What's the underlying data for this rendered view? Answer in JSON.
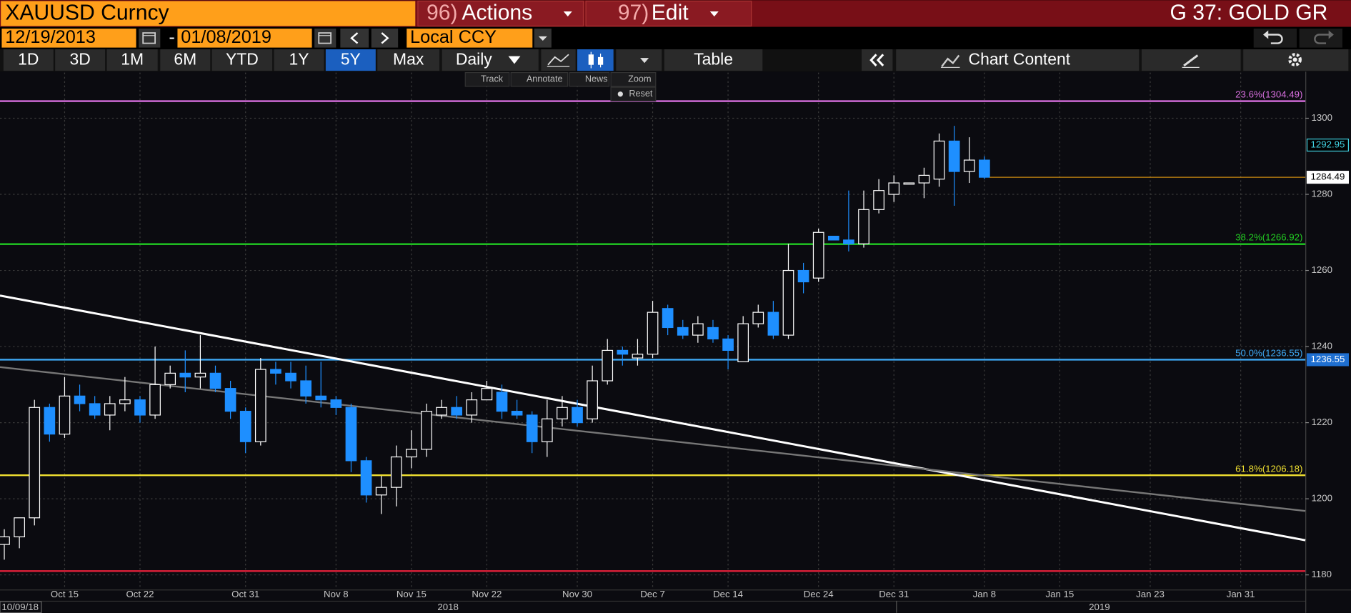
{
  "header": {
    "security": "XAUUSD Curncy",
    "actions": {
      "num": "96)",
      "label": "Actions"
    },
    "edit": {
      "num": "97)",
      "label": "Edit"
    },
    "function": "G 37: GOLD GR"
  },
  "date_range": {
    "start": "12/19/2013",
    "separator": "-",
    "end": "01/08/2019",
    "currency": "Local CCY"
  },
  "periods": [
    {
      "label": "1D"
    },
    {
      "label": "3D"
    },
    {
      "label": "1M"
    },
    {
      "label": "6M"
    },
    {
      "label": "YTD"
    },
    {
      "label": "1Y"
    },
    {
      "label": "5Y",
      "selected": true
    },
    {
      "label": "Max"
    }
  ],
  "frequency": "Daily",
  "table": "Table",
  "chart_content": "Chart Content",
  "chart_tools": [
    "Track",
    "Annotate",
    "News",
    "Zoom"
  ],
  "reset": "Reset",
  "chart_data": {
    "type": "candlestick",
    "categories": [
      null,
      null,
      null,
      null,
      "Oct 15",
      null,
      null,
      null,
      null,
      "Oct 22",
      null,
      null,
      null,
      null,
      null,
      null,
      "Oct 31",
      null,
      null,
      null,
      null,
      null,
      "Nov 8",
      null,
      null,
      null,
      null,
      "Nov 15",
      null,
      null,
      null,
      null,
      "Nov 22",
      null,
      null,
      null,
      null,
      null,
      "Nov 30",
      null,
      null,
      null,
      null,
      "Dec 7",
      null,
      null,
      null,
      null,
      "Dec 14",
      null,
      null,
      null,
      null,
      null,
      "Dec 24",
      null,
      null,
      null,
      null,
      "Dec 31",
      null,
      null,
      null,
      null,
      null,
      "Jan 8",
      null,
      null,
      null,
      null,
      "Jan 15",
      null,
      null,
      null,
      null,
      null,
      "Jan 23",
      null,
      null,
      null,
      null,
      null,
      "Jan 31",
      null,
      null,
      null,
      null
    ],
    "open": [
      1188,
      1190,
      1195,
      1224,
      1217,
      1227,
      1225,
      1222,
      1225,
      1226,
      1222,
      1230,
      1233,
      1232,
      1233,
      1229,
      1223,
      1215,
      1234,
      1233,
      1231,
      1227,
      1226,
      1224,
      1210,
      1201,
      1203,
      1211,
      1213,
      1222,
      1224,
      1222,
      1226,
      1228,
      1223,
      1222,
      1215,
      1221,
      1224,
      1221,
      1231,
      1239,
      1237,
      1238,
      1250,
      1245,
      1243,
      1245,
      1242,
      1236,
      1246,
      1249,
      1243,
      1260,
      1258,
      1269,
      1268,
      1267,
      1276,
      1280,
      1283,
      1283,
      1284,
      1294,
      1286,
      1289,
      null,
      null,
      null,
      null,
      null,
      null,
      null,
      null,
      null,
      null,
      null,
      null,
      null,
      null,
      null,
      null,
      null,
      null,
      null,
      null,
      null
    ],
    "high": [
      1192,
      1195,
      1226,
      1225,
      1232,
      1230,
      1227,
      1227,
      1232,
      1227,
      1240,
      1235,
      1239,
      1243,
      1235,
      1231,
      1224,
      1237,
      1236,
      1236,
      1235,
      1236,
      1227,
      1225,
      1211,
      1206,
      1214,
      1218,
      1225,
      1226,
      1227,
      1228,
      1231,
      1230,
      1226,
      1223,
      1226,
      1227,
      1226,
      1235,
      1242,
      1240,
      1242,
      1252,
      1251,
      1247,
      1248,
      1247,
      1243,
      1248,
      1251,
      1252,
      1267,
      1262,
      1271,
      1269,
      1281,
      1281,
      1284,
      1285,
      1283,
      1287,
      1296,
      1298,
      1295,
      1290,
      null,
      null,
      null,
      null,
      null,
      null,
      null,
      null,
      null,
      null,
      null,
      null,
      null,
      null,
      null,
      null,
      null,
      null,
      null,
      null,
      null
    ],
    "low": [
      1184,
      1187,
      1193,
      1215,
      1216,
      1223,
      1221,
      1218,
      1223,
      1220,
      1221,
      1229,
      1228,
      1229,
      1228,
      1221,
      1212,
      1214,
      1230,
      1229,
      1225,
      1224,
      1222,
      1207,
      1199,
      1196,
      1198,
      1208,
      1211,
      1221,
      1221,
      1220,
      1226,
      1221,
      1221,
      1212,
      1211,
      1219,
      1219,
      1220,
      1230,
      1235,
      1235,
      1237,
      1243,
      1242,
      1241,
      1241,
      1234,
      1236,
      1245,
      1242,
      1242,
      1254,
      1257,
      1268,
      1265,
      1266,
      1275,
      1278,
      1283,
      1279,
      1282,
      1277,
      1283,
      1284,
      null,
      null,
      null,
      null,
      null,
      null,
      null,
      null,
      null,
      null,
      null,
      null,
      null,
      null,
      null,
      null,
      null,
      null,
      null,
      null,
      null
    ],
    "close": [
      1190,
      1195,
      1224,
      1217,
      1227,
      1225,
      1222,
      1225,
      1226,
      1222,
      1230,
      1233,
      1232,
      1233,
      1229,
      1223,
      1215,
      1234,
      1233,
      1231,
      1227,
      1226,
      1224,
      1210,
      1201,
      1203,
      1211,
      1213,
      1223,
      1224,
      1222,
      1226,
      1229,
      1223,
      1222,
      1215,
      1221,
      1224,
      1220,
      1231,
      1239,
      1238,
      1238,
      1249,
      1245,
      1243,
      1246,
      1242,
      1239,
      1246,
      1249,
      1243,
      1260,
      1257,
      1270,
      1268,
      1267,
      1276,
      1281,
      1283,
      1283,
      1285,
      1294,
      1286,
      1289,
      1284.49,
      null,
      null,
      null,
      null,
      null,
      null,
      null,
      null,
      null,
      null,
      null,
      null,
      null,
      null,
      null,
      null,
      null,
      null,
      null,
      null,
      null
    ],
    "up_color": "#ffffff",
    "down_color": "#1e8fff",
    "ylim": [
      1176.15,
      1312
    ],
    "yticks": [
      1180,
      1200,
      1220,
      1240,
      1260,
      1280,
      1300
    ],
    "grid": true,
    "levels": [
      {
        "label": "23.6%(1304.49)",
        "value": 1304.49,
        "color": "#d970e0"
      },
      {
        "label": "38.2%(1266.92)",
        "value": 1266.92,
        "color": "#22cc22"
      },
      {
        "label": "50.0%(1236.55)",
        "value": 1236.55,
        "color": "#3fa9f5"
      },
      {
        "label": "61.8%(1206.18)",
        "value": 1206.18,
        "color": "#f0e030"
      },
      {
        "value": 1181,
        "color": "#e0203a"
      }
    ],
    "trendlines": [
      {
        "color": "#ffffff",
        "values": [
          1253.4,
          1189.1
        ]
      },
      {
        "color": "#777777",
        "values": [
          1234.6,
          1196.8
        ]
      }
    ],
    "last_price_color": "#c98a10",
    "price_labels": [
      {
        "value": 1292.95,
        "text_color": "#40d0e0",
        "background": "#000000",
        "border": "#40d0e0"
      },
      {
        "value": 1284.49,
        "text_color": "#000000",
        "background": "#ffffff",
        "border": "#ffffff"
      },
      {
        "value": 1236.55,
        "text_color": "#ffffff",
        "background": "#1f6fd0",
        "border": "#1f6fd0"
      }
    ],
    "start_label": "10/09/18",
    "year_labels": [
      "2018",
      "2019"
    ]
  }
}
